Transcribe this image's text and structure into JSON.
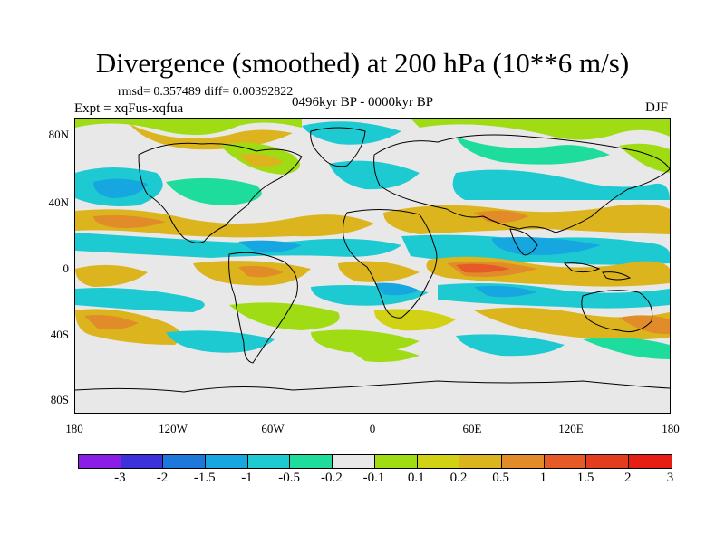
{
  "title": "Divergence (smoothed) at 200 hPa (10**6 m/s)",
  "stats": "rmsd= 0.357489 diff= 0.00392822",
  "experiment": "Expt = xqFus-xqfua",
  "period": "0496kyr BP - 0000kyr BP",
  "season": "DJF",
  "y_axis": [
    "80N",
    "40N",
    "0",
    "40S",
    "80S"
  ],
  "x_axis": [
    "180",
    "120W",
    "60W",
    "0",
    "60E",
    "120E",
    "180"
  ],
  "colorbar": {
    "colors": [
      "#8a1ee6",
      "#3c32dc",
      "#1e78dc",
      "#16a6e0",
      "#1ecad2",
      "#1edc9c",
      "#e8e8e8",
      "#a0dc14",
      "#d2d214",
      "#dcb41e",
      "#e18c28",
      "#e65a28",
      "#e43c1e",
      "#e61e14"
    ],
    "labels": [
      "-3",
      "-2",
      "-1.5",
      "-1",
      "-0.5",
      "-0.2",
      "-0.1",
      "0.1",
      "0.2",
      "0.5",
      "1",
      "1.5",
      "2",
      "3"
    ]
  },
  "legend_colors": {
    "ocean_background": "#e8e8e8",
    "coast": "#000000"
  }
}
